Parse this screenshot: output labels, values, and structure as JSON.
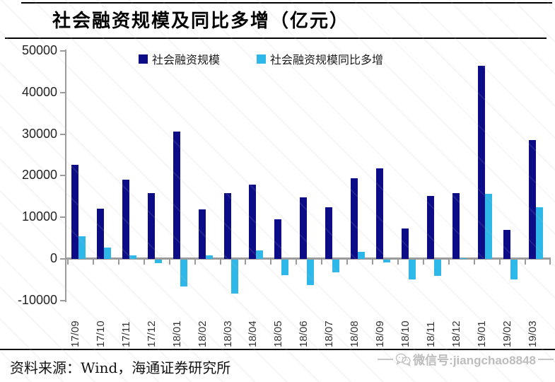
{
  "header": {
    "title": "社会融资规模及同比多增（亿元）"
  },
  "legend": [
    {
      "label": "社会融资规模",
      "color": "#0c0c86"
    },
    {
      "label": "社会融资规模同比多增",
      "color": "#2eb7e9"
    }
  ],
  "footer": {
    "source_note": "资料来源：Wind，海通证券研究所",
    "watermark_icon": "wechat-icon",
    "watermark_text": "微信号:jiangchao8848"
  },
  "chart_data": {
    "type": "bar",
    "title": "社会融资规模及同比多增（亿元）",
    "categories": [
      "17/09",
      "17/10",
      "17/11",
      "17/12",
      "18/01",
      "18/02",
      "18/03",
      "18/04",
      "18/05",
      "18/06",
      "18/07",
      "18/08",
      "18/09",
      "18/10",
      "18/11",
      "18/12",
      "19/01",
      "19/02",
      "19/03"
    ],
    "series": [
      {
        "name": "社会融资规模",
        "color": "#0c0c86",
        "values": [
          22700,
          12100,
          19100,
          15900,
          30600,
          11900,
          15900,
          17800,
          9500,
          14800,
          12400,
          19400,
          21800,
          7300,
          15200,
          15900,
          46400,
          7000,
          28600
        ]
      },
      {
        "name": "社会融资规模同比多增",
        "color": "#2eb7e9",
        "values": [
          5500,
          2800,
          900,
          -800,
          -6500,
          900,
          -8100,
          2000,
          -3800,
          -6100,
          -3000,
          1700,
          -600,
          -4700,
          -3900,
          100,
          15600,
          -4800,
          12400
        ]
      }
    ],
    "xlabel": "",
    "ylabel": "",
    "ylim": [
      -10000,
      50000
    ],
    "ytick_interval": 10000,
    "yticks": [
      "50000",
      "40000",
      "30000",
      "20000",
      "10000",
      "0",
      "-10000"
    ],
    "grid": false,
    "legend_position": "top",
    "axis_color": "#9b9b9b"
  }
}
